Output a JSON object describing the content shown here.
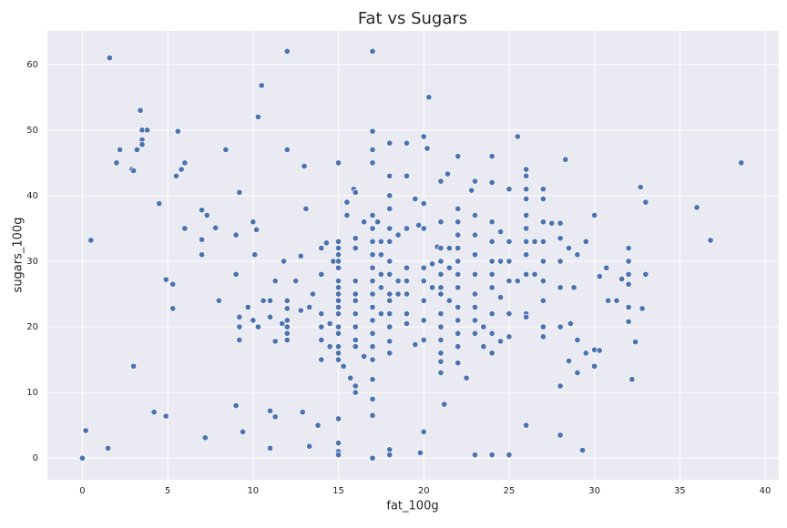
{
  "chart_data": {
    "type": "scatter",
    "title": "Fat vs Sugars",
    "x_label": "fat_100g",
    "y_label": "sugars_100g",
    "color": "#4c72b0",
    "grid": true,
    "xlim": [
      -2.05,
      40.8
    ],
    "ylim": [
      -3.3,
      65.1
    ],
    "xticks": [
      0,
      5,
      10,
      15,
      20,
      25,
      30,
      35,
      40
    ],
    "yticks": [
      0,
      10,
      20,
      30,
      40,
      50,
      60
    ],
    "x": [
      0,
      0.2,
      0.5,
      1.5,
      1.6,
      2,
      2.2,
      2.9,
      3,
      3,
      3.2,
      3.4,
      3.5,
      3.5,
      3.5,
      3.8,
      4.2,
      4.5,
      4.9,
      4.9,
      5.3,
      5.3,
      5.5,
      5.6,
      5.8,
      6,
      6,
      7,
      7,
      7,
      7.2,
      7.3,
      7.8,
      8,
      8.4,
      9,
      9,
      9,
      9.2,
      9.2,
      9.2,
      9.2,
      9.4,
      9.7,
      10,
      10,
      10.1,
      10.2,
      10.3,
      10.3,
      10.5,
      10.6,
      11,
      11,
      11,
      11,
      11.3,
      11.3,
      11.3,
      11.7,
      11.8,
      12,
      12,
      12,
      12,
      12,
      12,
      12,
      12,
      12.5,
      12.8,
      12.8,
      12.9,
      13,
      13.1,
      13.3,
      13.3,
      13.5,
      13.8,
      14,
      14,
      14,
      14,
      14,
      14,
      14.3,
      14.5,
      14.5,
      14.7,
      15,
      15,
      15,
      15,
      15,
      15,
      15,
      15,
      15,
      15,
      15,
      15,
      15,
      15,
      15,
      15,
      15,
      15,
      15,
      15,
      15,
      15.3,
      15.5,
      15.5,
      15.7,
      15.9,
      16,
      16,
      16,
      16,
      16,
      16,
      16,
      16,
      16,
      16,
      16,
      16,
      16.5,
      16.5,
      17,
      17,
      17,
      17,
      17,
      17,
      17,
      17,
      17,
      17,
      17,
      17,
      17,
      17,
      17,
      17,
      17,
      17,
      17,
      17,
      17.3,
      17.5,
      17.5,
      17.5,
      17.5,
      17.5,
      18,
      18,
      18,
      18,
      18,
      18,
      18,
      18,
      18,
      18,
      18,
      18,
      18,
      18,
      18,
      18,
      18.5,
      18.5,
      18.5,
      19,
      19,
      19,
      19,
      19,
      19,
      19,
      19,
      19.5,
      19.5,
      19.7,
      19.8,
      20,
      20,
      20,
      20,
      20,
      20,
      20,
      20,
      20,
      20.2,
      20.3,
      20.5,
      20.5,
      20.8,
      21,
      21,
      21,
      21,
      21,
      21,
      21,
      21,
      21,
      21,
      21,
      21,
      21,
      21.2,
      21.4,
      21.5,
      21.5,
      21.5,
      22,
      22,
      22,
      22,
      22,
      22,
      22,
      22,
      22,
      22,
      22,
      22,
      22,
      22.5,
      22.8,
      23,
      23,
      23,
      23,
      23,
      23,
      23,
      23,
      23,
      23,
      23.5,
      23.5,
      24,
      24,
      24,
      24,
      24,
      24,
      24,
      24,
      24,
      24,
      24,
      24.5,
      24.5,
      24.5,
      24.5,
      25,
      25,
      25,
      25,
      25,
      25,
      25,
      25.5,
      25.5,
      26,
      26,
      26,
      26,
      26,
      26,
      26,
      26,
      26,
      26,
      26,
      26,
      26.5,
      26.5,
      27,
      27,
      27,
      27,
      27,
      27,
      27,
      27,
      27,
      27.5,
      28,
      28,
      28,
      28,
      28,
      28,
      28,
      28.3,
      28.5,
      28.5,
      28.6,
      28.8,
      29,
      29,
      29,
      29.3,
      29.5,
      29.5,
      30,
      30,
      30,
      30.3,
      30.3,
      30.7,
      30.8,
      31.3,
      31.6,
      32,
      32,
      32,
      32,
      32,
      32,
      32.2,
      32.4,
      32.7,
      32.8,
      33,
      33,
      36,
      36.8,
      38.6
    ],
    "values": [
      0,
      4.2,
      33.2,
      1.5,
      61,
      45,
      47,
      44,
      43.8,
      14,
      47,
      53,
      50,
      48.5,
      47.8,
      50,
      7,
      38.8,
      27.2,
      6.4,
      26.5,
      22.8,
      43,
      49.8,
      44,
      45,
      35,
      37.8,
      33.3,
      31,
      3.1,
      37,
      35.1,
      24,
      47,
      34,
      28,
      8,
      40.5,
      21.5,
      20,
      18,
      4,
      23,
      36,
      21,
      31,
      34.8,
      52,
      20,
      56.8,
      24,
      24,
      21.5,
      7.2,
      1.5,
      27,
      6.3,
      17.8,
      20.5,
      30,
      62,
      47,
      24,
      22.8,
      21,
      20,
      19,
      18,
      27,
      22.5,
      30.8,
      7,
      44.5,
      38,
      23,
      1.8,
      25,
      5,
      15,
      18,
      20,
      22,
      28,
      32,
      32.8,
      20.5,
      17,
      30,
      45,
      33,
      32,
      31,
      30,
      29,
      27,
      26,
      25,
      24,
      23,
      22,
      20,
      19,
      17,
      16,
      15,
      6,
      2.3,
      1,
      0.5,
      14,
      37,
      39,
      12.2,
      41,
      40.5,
      33.5,
      32,
      27,
      25,
      24,
      22,
      20,
      18,
      17,
      11,
      10,
      36,
      15.5,
      62,
      49.8,
      47,
      45,
      37,
      35,
      33,
      31,
      29,
      27,
      25,
      23,
      21,
      19,
      17,
      15,
      12,
      9,
      6.5,
      0,
      36,
      33,
      31,
      28,
      26,
      22,
      48,
      43,
      40,
      38,
      35,
      33,
      30,
      28,
      25,
      24,
      22,
      20,
      17.8,
      16,
      1.3,
      0.5,
      34,
      27,
      25,
      48,
      43,
      35,
      29,
      27,
      25,
      22,
      20.5,
      17.3,
      39.5,
      35.5,
      0.8,
      49,
      38.8,
      35,
      29,
      27,
      24,
      21,
      18,
      4,
      47.2,
      55,
      29.6,
      26,
      32.2,
      42.2,
      36,
      32,
      30,
      28,
      26,
      25,
      22,
      20,
      18,
      16,
      14.7,
      13,
      8.2,
      43.3,
      32,
      29,
      24,
      38,
      36,
      34,
      32,
      30,
      28,
      26,
      23,
      21,
      19,
      17,
      14.5,
      46,
      12.2,
      40.8,
      42.2,
      37,
      34,
      31,
      28,
      25,
      23,
      21,
      19,
      0.5,
      20,
      17,
      46,
      42,
      36,
      33,
      30,
      28,
      26,
      22,
      19,
      16,
      0.5,
      34.5,
      30,
      24.5,
      17.8,
      41,
      33,
      30,
      27,
      22,
      18.5,
      0.5,
      49,
      27,
      44,
      43,
      41,
      39.5,
      37,
      35,
      33,
      31,
      28,
      22,
      21.5,
      5,
      33,
      28,
      41,
      39.5,
      36,
      33,
      30,
      27,
      24,
      20,
      18.5,
      35.8,
      35.8,
      33.5,
      30,
      26,
      20,
      11,
      3.5,
      45.5,
      32,
      14.8,
      20.5,
      26,
      31,
      18,
      13,
      1.2,
      33,
      16,
      37,
      14,
      16.5,
      27.7,
      16.4,
      29,
      24,
      24,
      27.3,
      32,
      30,
      28,
      26.5,
      23,
      20.8,
      12,
      17.7,
      41.3,
      22.8,
      28,
      39,
      38.2,
      33.2,
      45
    ]
  }
}
